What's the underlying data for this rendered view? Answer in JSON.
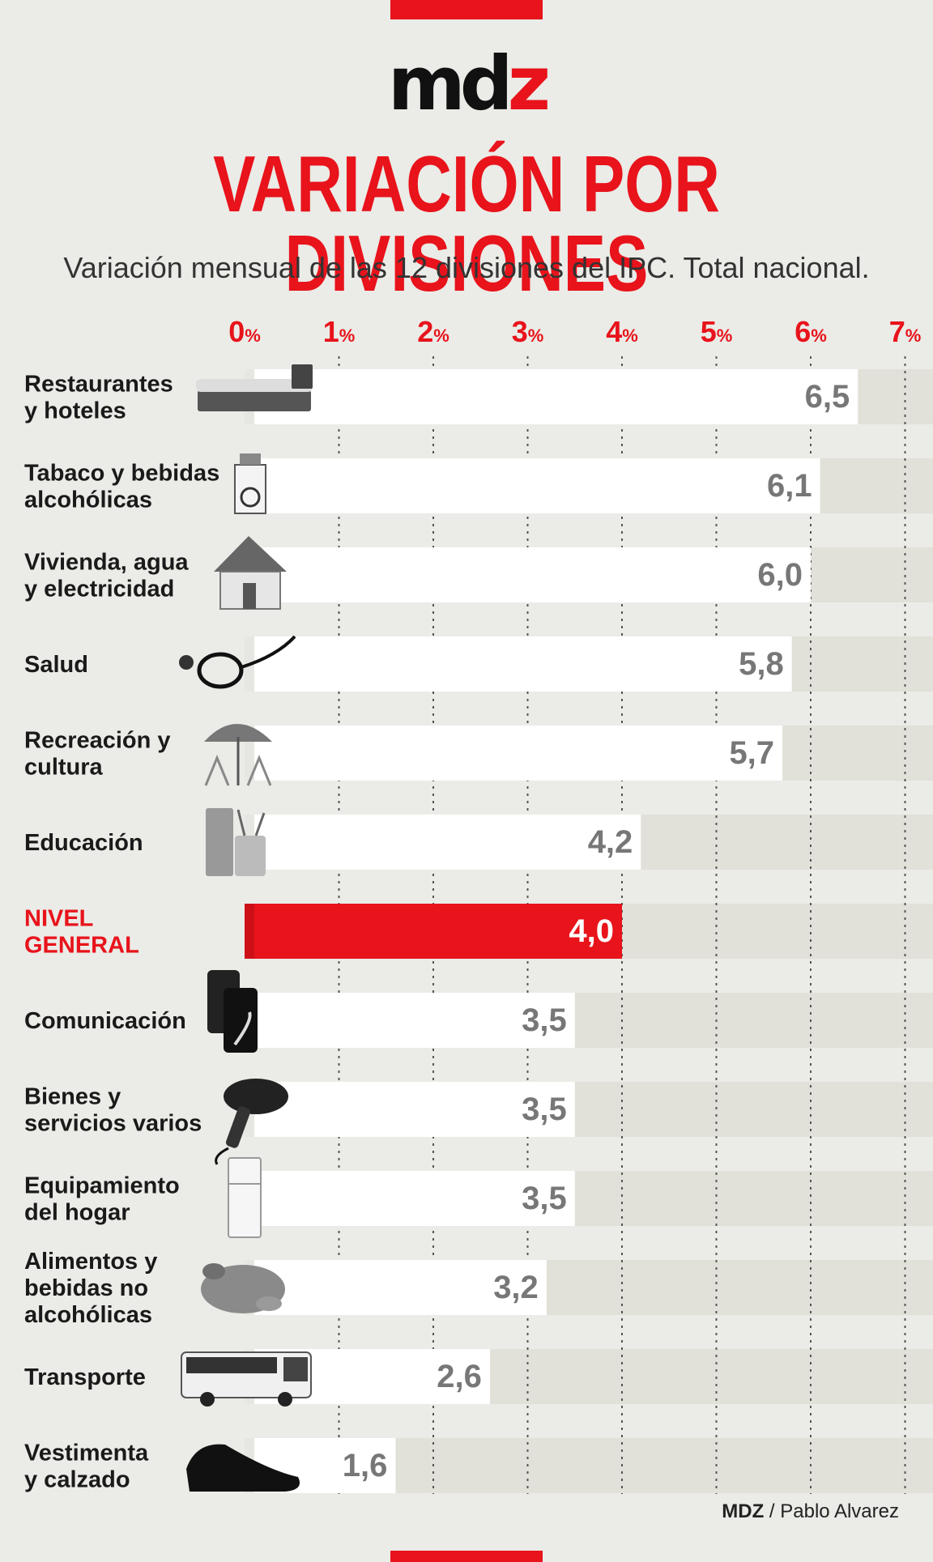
{
  "header": {
    "logo_main": "md",
    "logo_accent": "z"
  },
  "chart_data": {
    "type": "bar",
    "orientation": "horizontal",
    "title": "VARIACIÓN POR DIVISIONES",
    "subtitle": "Variación mensual de las 12 divisiones del IPC. Total nacional.",
    "x_ticks": [
      {
        "value": 0,
        "label": "0",
        "unit": "%"
      },
      {
        "value": 1,
        "label": "1",
        "unit": "%"
      },
      {
        "value": 2,
        "label": "2",
        "unit": "%"
      },
      {
        "value": 3,
        "label": "3",
        "unit": "%"
      },
      {
        "value": 4,
        "label": "4",
        "unit": "%"
      },
      {
        "value": 5,
        "label": "5",
        "unit": "%"
      },
      {
        "value": 6,
        "label": "6",
        "unit": "%"
      },
      {
        "value": 7,
        "label": "7",
        "unit": "%"
      }
    ],
    "xlim": [
      0,
      7
    ],
    "categories": [
      {
        "lines": [
          "Restaurantes",
          "y hoteles"
        ],
        "value": 6.5,
        "label": "6,5",
        "highlight": false,
        "icon": "bed-icon"
      },
      {
        "lines": [
          "Tabaco y bebidas",
          "alcohólicas"
        ],
        "value": 6.1,
        "label": "6,1",
        "highlight": false,
        "icon": "cigarettes-icon"
      },
      {
        "lines": [
          "Vivienda, agua",
          "y electricidad"
        ],
        "value": 6.0,
        "label": "6,0",
        "highlight": false,
        "icon": "house-icon"
      },
      {
        "lines": [
          "Salud"
        ],
        "value": 5.8,
        "label": "5,8",
        "highlight": false,
        "icon": "stethoscope-icon"
      },
      {
        "lines": [
          "Recreación y",
          "cultura"
        ],
        "value": 5.7,
        "label": "5,7",
        "highlight": false,
        "icon": "beach-umbrella-icon"
      },
      {
        "lines": [
          "Educación"
        ],
        "value": 4.2,
        "label": "4,2",
        "highlight": false,
        "icon": "pencil-cup-icon"
      },
      {
        "lines": [
          "NIVEL",
          "GENERAL"
        ],
        "value": 4.0,
        "label": "4,0",
        "highlight": true,
        "icon": ""
      },
      {
        "lines": [
          "Comunicación"
        ],
        "value": 3.5,
        "label": "3,5",
        "highlight": false,
        "icon": "smartphone-icon"
      },
      {
        "lines": [
          "Bienes y",
          "servicios varios"
        ],
        "value": 3.5,
        "label": "3,5",
        "highlight": false,
        "icon": "hair-dryer-icon"
      },
      {
        "lines": [
          "Equipamiento",
          "del hogar"
        ],
        "value": 3.5,
        "label": "3,5",
        "highlight": false,
        "icon": "fridge-icon"
      },
      {
        "lines": [
          "Alimentos y",
          "bebidas no",
          "alcohólicas"
        ],
        "value": 3.2,
        "label": "3,2",
        "highlight": false,
        "icon": "chicken-icon"
      },
      {
        "lines": [
          "Transporte"
        ],
        "value": 2.6,
        "label": "2,6",
        "highlight": false,
        "icon": "bus-icon"
      },
      {
        "lines": [
          "Vestimenta",
          "y calzado"
        ],
        "value": 1.6,
        "label": "1,6",
        "highlight": false,
        "icon": "shoe-icon"
      }
    ],
    "colors": {
      "accent": "#e8131b",
      "bar": "#ffffff",
      "track": "#e1e1d9",
      "value_text": "#777777",
      "label_text": "#1a1a1a"
    }
  },
  "footer": {
    "credit_brand": "MDZ",
    "credit_author": " / Pablo Alvarez"
  }
}
